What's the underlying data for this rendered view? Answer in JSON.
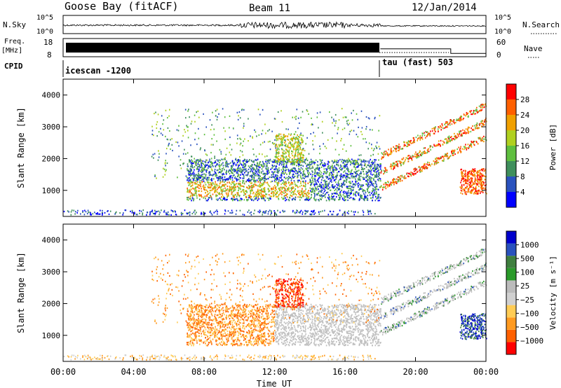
{
  "header": {
    "station": "Goose Bay (fitACF)",
    "beam": "Beam 11",
    "date": "12/Jan/2014"
  },
  "colors": {
    "power_scale": [
      "#0000ff",
      "#2a52be",
      "#3f8f5c",
      "#5fbf3f",
      "#b0d020",
      "#f0a000",
      "#ff6000",
      "#ff0000"
    ],
    "velocity_scale": [
      "#ff0000",
      "#ff6000",
      "#ff9a20",
      "#ffcc55",
      "#d0d0d0",
      "#bbbbbb",
      "#2a9a2a",
      "#3f7f3f",
      "#2a52be",
      "#0000cc"
    ],
    "ground_scatter": "#c0c0c0"
  },
  "chart_data": [
    {
      "type": "line",
      "name": "noise-panel",
      "left_label": "N.Sky",
      "right_label": "N.Search",
      "left_ticks": [
        "10^5",
        "10^0"
      ],
      "right_ticks": [
        "10^5",
        "10^0"
      ]
    },
    {
      "type": "line",
      "name": "frequency-nave-panel",
      "left_label_top": "Freq.",
      "left_label_bottom": "[MHz]",
      "right_label": "Nave",
      "left_ticks": [
        "18",
        "8"
      ],
      "right_ticks": [
        "60",
        "0"
      ],
      "series": [
        {
          "name": "Freq.",
          "x": [
            0,
            18
          ],
          "y": [
            12,
            12
          ]
        },
        {
          "name": "Nave",
          "x": [
            18,
            22,
            22,
            24
          ],
          "y": [
            25,
            25,
            5,
            5
          ]
        }
      ]
    },
    {
      "type": "table",
      "name": "cpid-panel",
      "label": "CPID",
      "segments": [
        {
          "label": "icescan -1200",
          "start_hour": 0,
          "end_hour": 18
        },
        {
          "label": "tau (fast) 503",
          "start_hour": 18,
          "end_hour": 24
        }
      ]
    },
    {
      "type": "heatmap",
      "name": "power-panel",
      "ylabel": "Slant Range [km]",
      "yticks": [
        "1000",
        "2000",
        "3000",
        "4000"
      ],
      "ylim": [
        180,
        4500
      ],
      "xlim": [
        0,
        24
      ],
      "colorbar_label": "Power [dB]",
      "colorbar_ticks": [
        "28",
        "24",
        "20",
        "16",
        "12",
        "8",
        "4"
      ],
      "colorbar_range": [
        0,
        30
      ]
    },
    {
      "type": "heatmap",
      "name": "velocity-panel",
      "ylabel": "Slant Range [km]",
      "yticks": [
        "1000",
        "2000",
        "3000",
        "4000"
      ],
      "ylim": [
        180,
        4500
      ],
      "xlim": [
        0,
        24
      ],
      "colorbar_label": "Velocity [m s⁻¹]",
      "colorbar_ticks": [
        "1000",
        "500",
        "100",
        "25",
        "−25",
        "−100",
        "−500",
        "−1000"
      ]
    }
  ],
  "xaxis": {
    "ticks": [
      "00:00",
      "04:00",
      "08:00",
      "12:00",
      "16:00",
      "20:00",
      "00:00"
    ],
    "label": "Time UT"
  }
}
